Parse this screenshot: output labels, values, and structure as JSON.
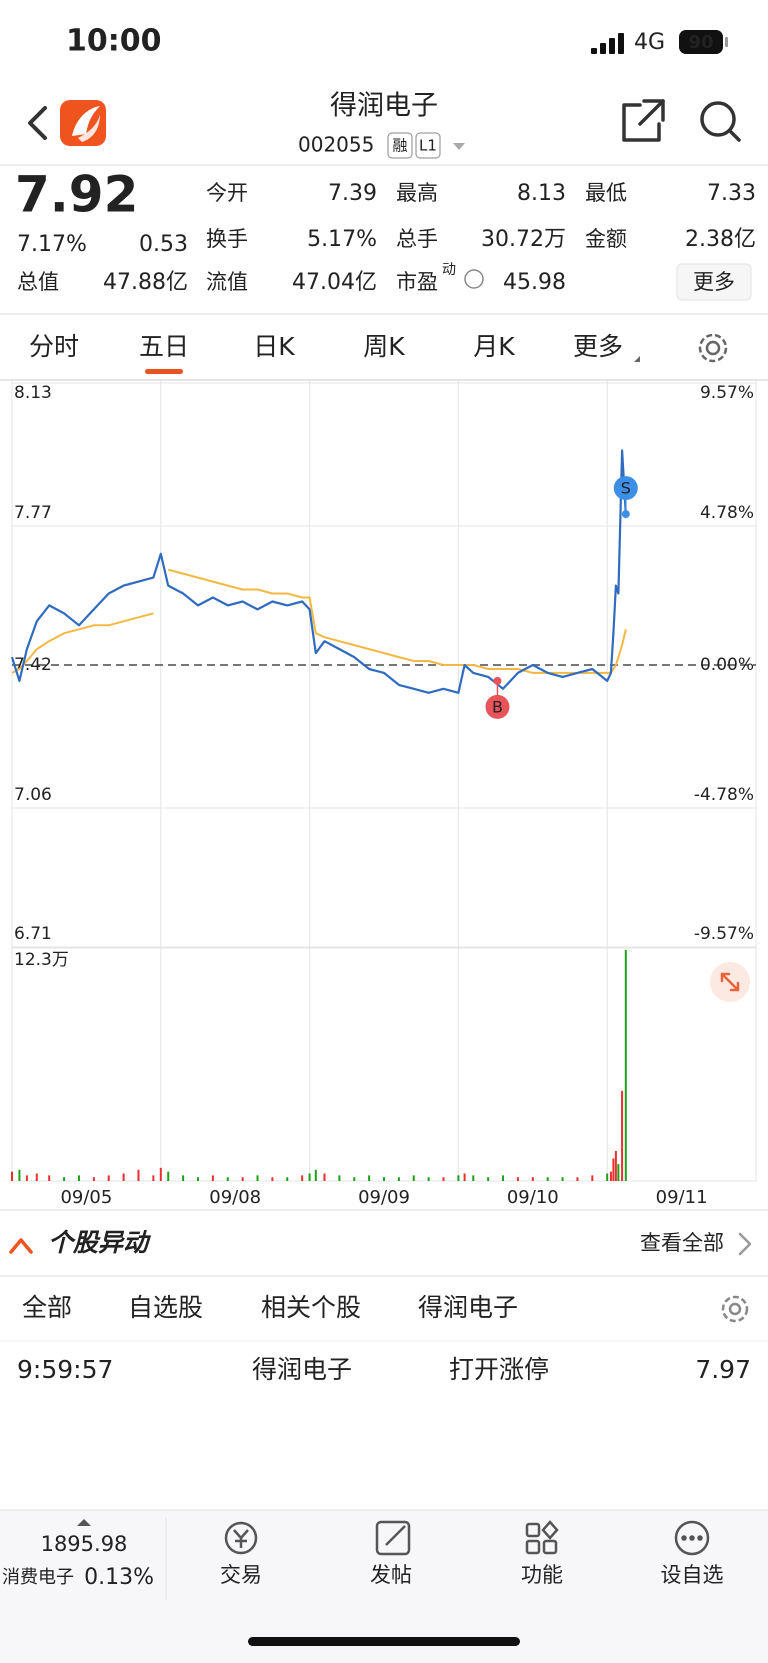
{
  "status": {
    "time": "10:00",
    "network": "4G",
    "battery": "90"
  },
  "header": {
    "title": "得润电子",
    "code": "002055",
    "badges": [
      "融",
      "L1"
    ]
  },
  "quote": {
    "price": "7.92",
    "pct": "7.17%",
    "change": "0.53",
    "color": "#e8302e",
    "stats": [
      {
        "label": "今开",
        "value": "7.39",
        "color": "#222222"
      },
      {
        "label": "最高",
        "value": "8.13",
        "color": "#e8302e"
      },
      {
        "label": "最低",
        "value": "7.33",
        "color": "#1aa11a"
      },
      {
        "label": "换手",
        "value": "5.17%",
        "color": "#222222"
      },
      {
        "label": "总手",
        "value": "30.72万",
        "color": "#222222"
      },
      {
        "label": "金额",
        "value": "2.38亿",
        "color": "#222222"
      },
      {
        "label": "总值",
        "value": "47.88亿",
        "color": "#222222"
      },
      {
        "label": "流值",
        "value": "47.04亿",
        "color": "#222222"
      },
      {
        "label": "市盈",
        "sup": "动",
        "value": "45.98",
        "color": "#222222"
      }
    ],
    "more": "更多"
  },
  "tabs": {
    "items": [
      "分时",
      "五日",
      "日K",
      "周K",
      "月K",
      "更多"
    ],
    "active": 1
  },
  "chart": {
    "type": "line",
    "xlim": [
      0,
      1200
    ],
    "xticks": [
      240,
      480,
      720,
      960
    ],
    "dates": [
      "09/05",
      "09/08",
      "09/09",
      "09/10",
      "09/11"
    ],
    "ylim": [
      6.71,
      8.13
    ],
    "yticks": [
      {
        "value": 8.13,
        "label": "8.13",
        "pct": "9.57%",
        "color": "#e8302e"
      },
      {
        "value": 7.77,
        "label": "7.77",
        "pct": "4.78%",
        "color": "#e8302e"
      },
      {
        "value": 7.42,
        "label": "7.42",
        "pct": "0.00%",
        "color": "#888888"
      },
      {
        "value": 7.06,
        "label": "7.06",
        "pct": "-4.78%",
        "color": "#1aa11a"
      },
      {
        "value": 6.71,
        "label": "6.71",
        "pct": "-9.57%",
        "color": "#1aa11a"
      }
    ],
    "x": [
      0,
      12,
      24,
      40,
      60,
      84,
      108,
      132,
      156,
      180,
      204,
      228,
      240,
      252,
      276,
      300,
      324,
      348,
      372,
      396,
      420,
      444,
      468,
      480,
      490,
      504,
      528,
      552,
      576,
      600,
      624,
      648,
      672,
      696,
      720,
      730,
      744,
      768,
      792,
      816,
      840,
      864,
      888,
      912,
      936,
      960,
      966,
      970,
      974,
      978,
      984,
      990
    ],
    "series": [
      {
        "color": "#2f6cc0",
        "values": [
          7.44,
          7.38,
          7.46,
          7.53,
          7.57,
          7.55,
          7.52,
          7.56,
          7.6,
          7.62,
          7.63,
          7.64,
          7.7,
          7.62,
          7.6,
          7.57,
          7.59,
          7.57,
          7.58,
          7.56,
          7.58,
          7.57,
          7.58,
          7.56,
          7.45,
          7.48,
          7.46,
          7.44,
          7.41,
          7.4,
          7.37,
          7.36,
          7.35,
          7.36,
          7.35,
          7.42,
          7.4,
          7.39,
          7.36,
          7.4,
          7.42,
          7.4,
          7.39,
          7.4,
          7.41,
          7.38,
          7.4,
          7.5,
          7.62,
          7.6,
          7.96,
          7.8
        ]
      },
      {
        "color": "#f3b843",
        "values": [
          7.4,
          7.41,
          7.43,
          7.46,
          7.48,
          7.5,
          7.51,
          7.52,
          7.52,
          7.53,
          7.54,
          7.55,
          null,
          7.66,
          7.65,
          7.64,
          7.63,
          7.62,
          7.61,
          7.61,
          7.6,
          7.6,
          7.59,
          7.59,
          7.5,
          7.49,
          7.48,
          7.47,
          7.46,
          7.45,
          7.44,
          7.43,
          7.43,
          7.42,
          7.42,
          7.42,
          7.42,
          7.41,
          7.41,
          7.41,
          7.4,
          7.4,
          7.4,
          7.4,
          7.4,
          7.4,
          7.4,
          7.41,
          7.42,
          7.44,
          7.47,
          7.51
        ]
      }
    ],
    "volume": [
      0.5,
      0.6,
      0.3,
      0.4,
      0.3,
      0.2,
      0.3,
      0.2,
      0.3,
      0.4,
      0.6,
      0.3,
      0.7,
      0.5,
      0.3,
      0.2,
      0.3,
      0.2,
      0.2,
      0.3,
      0.2,
      0.2,
      0.3,
      0.4,
      0.6,
      0.4,
      0.3,
      0.2,
      0.3,
      0.2,
      0.2,
      0.3,
      0.2,
      0.2,
      0.3,
      0.4,
      0.3,
      0.2,
      0.3,
      0.2,
      0.2,
      0.2,
      0.2,
      0.2,
      0.3,
      0.4,
      0.5,
      1.2,
      1.6,
      0.9,
      4.8,
      12.3
    ],
    "vol_ylim": [
      0,
      12.3
    ],
    "vol_tick": {
      "value": 12.3,
      "label": "12.3万"
    },
    "up_color": "#e8302e",
    "down_color": "#1aa11a",
    "trades": [
      {
        "label": "B",
        "x": 783,
        "price": 7.38,
        "color": "#e8545a"
      },
      {
        "label": "S",
        "x": 990,
        "price": 7.8,
        "color": "#3d8ee6"
      }
    ]
  },
  "section": {
    "title": "个股异动",
    "link": "查看全部"
  },
  "filters": {
    "items": [
      "全部",
      "自选股",
      "相关个股",
      "得润电子"
    ],
    "active": 3
  },
  "alerts": [
    {
      "time": "9:59:57",
      "name": "得润电子",
      "event": "打开涨停",
      "price": "7.97"
    }
  ],
  "bottom": {
    "index_value": "1895.98",
    "index_name": "消费电子",
    "index_pct": "0.13%",
    "nav": [
      "交易",
      "发帖",
      "功能",
      "设自选"
    ]
  }
}
